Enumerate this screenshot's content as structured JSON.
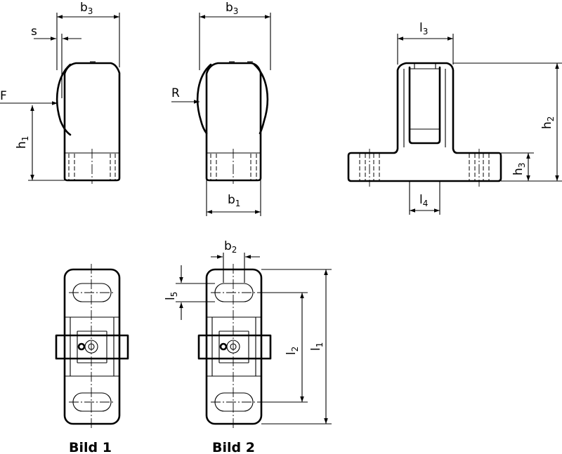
{
  "labels": {
    "b3_a": {
      "main": "b",
      "sub": "3"
    },
    "b3_b": {
      "main": "b",
      "sub": "3"
    },
    "s": "s",
    "F": "F",
    "R": "R",
    "h1": {
      "main": "h",
      "sub": "1"
    },
    "b1": {
      "main": "b",
      "sub": "1"
    },
    "l3": {
      "main": "l",
      "sub": "3"
    },
    "h2": {
      "main": "h",
      "sub": "2"
    },
    "h3": {
      "main": "h",
      "sub": "3"
    },
    "l4": {
      "main": "l",
      "sub": "4"
    },
    "b2": {
      "main": "b",
      "sub": "2"
    },
    "l5": {
      "main": "l",
      "sub": "5"
    },
    "l2": {
      "main": "l",
      "sub": "2"
    },
    "l1": {
      "main": "l",
      "sub": "1"
    }
  },
  "captions": {
    "bild1": "Bild 1",
    "bild2": "Bild 2"
  },
  "colors": {
    "line": "#000000",
    "background": "#ffffff"
  }
}
